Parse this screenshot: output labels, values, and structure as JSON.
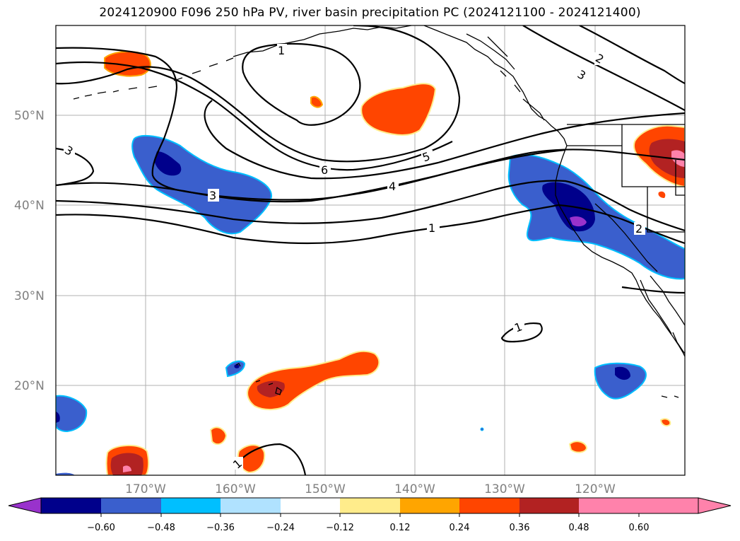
{
  "title": "2024120900 F096 250 hPa PV, river basin precipitation PC (2024121100 - 2024121400)",
  "map": {
    "lon_labels": [
      "170°W",
      "160°W",
      "150°W",
      "140°W",
      "130°W",
      "120°W"
    ],
    "lat_labels": [
      "50°N",
      "40°N",
      "30°N",
      "20°N"
    ],
    "contour_labels": [
      "1",
      "1",
      "2",
      "2",
      "3",
      "3",
      "3",
      "4",
      "5",
      "6",
      "1",
      "1"
    ]
  },
  "colorbar": {
    "ticks": [
      "−0.60",
      "−0.48",
      "−0.36",
      "−0.24",
      "−0.12",
      "0.12",
      "0.24",
      "0.36",
      "0.48",
      "0.60"
    ],
    "colors": [
      "#9932cc",
      "#00008b",
      "#3a5fcd",
      "#00bfff",
      "#b0e2ff",
      "#ffffff",
      "#ffec8b",
      "#ffa500",
      "#ff4500",
      "#b22222",
      "#ff82ab",
      "#ff82ab"
    ]
  }
}
